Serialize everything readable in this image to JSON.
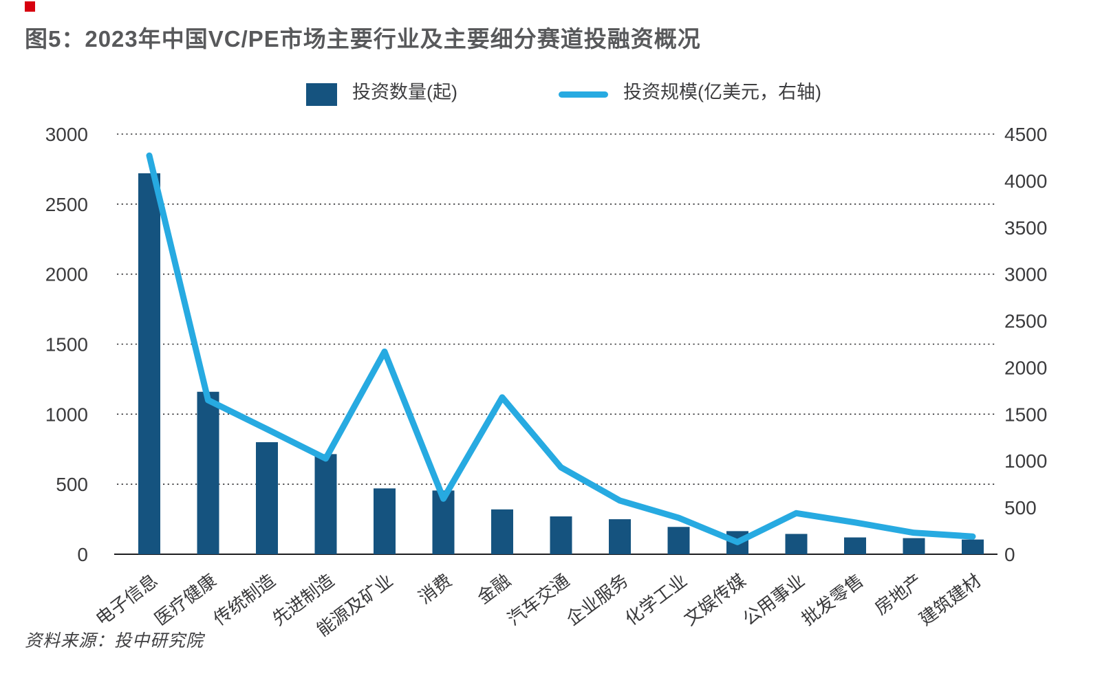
{
  "page": {
    "title": "图5：2023年中国VC/PE市场主要行业及主要细分赛道投融资概况",
    "source": "资料来源：投中研究院",
    "accent_color": "#d7000f",
    "title_color": "#58595b",
    "axis_text_color": "#3b3b3d",
    "background_color": "#ffffff"
  },
  "legend": {
    "items": [
      {
        "swatch": "bar",
        "label": "投资数量(起)",
        "color": "#15537f"
      },
      {
        "swatch": "line",
        "label": "投资规模(亿美元，右轴)",
        "color": "#27aae1"
      }
    ]
  },
  "chart_data": {
    "type": "bar+line combo, dual axis",
    "title": "2023年中国VC/PE市场主要行业及主要细分赛道投融资概况",
    "categories": [
      "电子信息",
      "医疗健康",
      "传统制造",
      "先进制造",
      "能源及矿业",
      "消费",
      "金融",
      "汽车交通",
      "企业服务",
      "化学工业",
      "文娱传媒",
      "公用事业",
      "批发零售",
      "房地产",
      "建筑建材"
    ],
    "series": [
      {
        "name": "投资数量(起)",
        "type": "bar",
        "axis": "left",
        "color": "#15537f",
        "values": [
          2720,
          1160,
          800,
          715,
          470,
          455,
          320,
          270,
          250,
          195,
          165,
          145,
          120,
          115,
          105
        ]
      },
      {
        "name": "投资规模(亿美元，右轴)",
        "type": "line",
        "axis": "right",
        "color": "#27aae1",
        "values": [
          4270,
          1650,
          1340,
          1025,
          2170,
          595,
          1680,
          930,
          575,
          390,
          130,
          440,
          340,
          230,
          190
        ]
      }
    ],
    "left_axis": {
      "min": 0,
      "max": 3000,
      "step": 500,
      "tick_labels": [
        "3000",
        "2500",
        "2000",
        "1500",
        "1000",
        "500",
        "0"
      ]
    },
    "right_axis": {
      "min": 0,
      "max": 4500,
      "step": 500,
      "tick_labels": [
        "4500",
        "4000",
        "3500",
        "3000",
        "2500",
        "2000",
        "1500",
        "1000",
        "500",
        "0"
      ]
    },
    "grid": {
      "horizontal": "dotted",
      "at_left_axis_steps": true
    },
    "legend_position": "top-center"
  }
}
